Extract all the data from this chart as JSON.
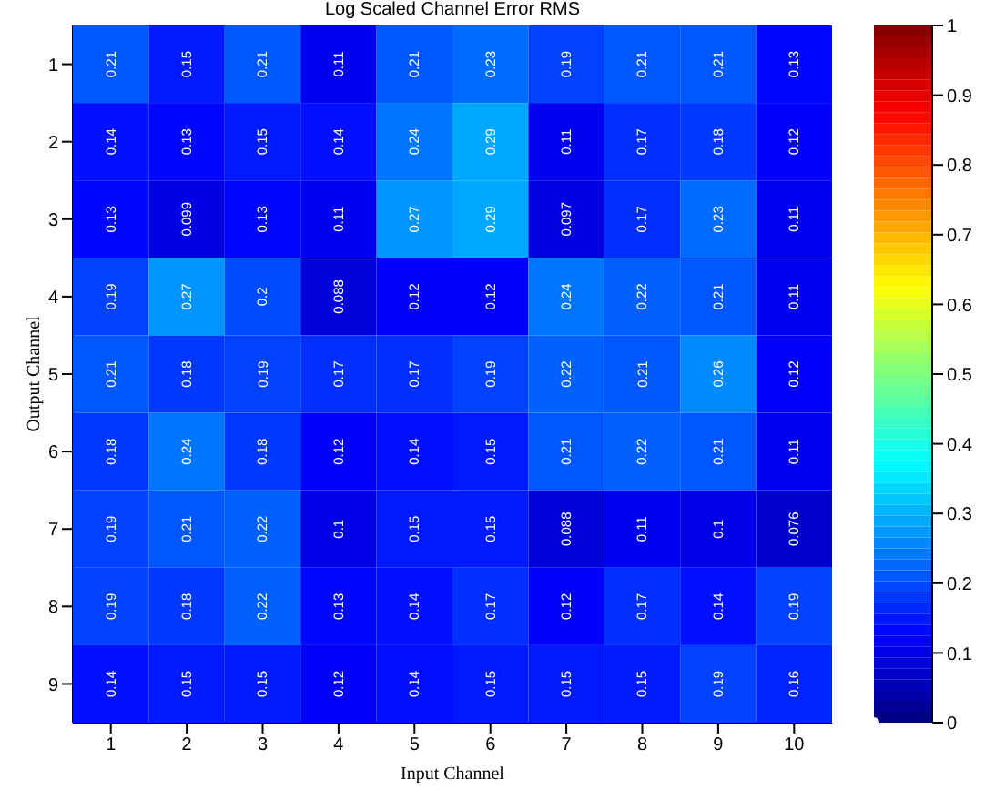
{
  "chart_data": {
    "type": "heatmap",
    "title": "Log Scaled Channel Error RMS",
    "xlabel": "Input Channel",
    "ylabel": "Output Channel",
    "categories": [
      "1",
      "2",
      "3",
      "4",
      "5",
      "6",
      "7",
      "8",
      "9",
      "10"
    ],
    "y_categories": [
      "1",
      "2",
      "3",
      "4",
      "5",
      "6",
      "7",
      "8",
      "9"
    ],
    "cells": [
      [
        0.21,
        0.15,
        0.21,
        0.11,
        0.21,
        0.23,
        0.19,
        0.21,
        0.21,
        0.13
      ],
      [
        0.14,
        0.13,
        0.15,
        0.14,
        0.24,
        0.29,
        0.11,
        0.17,
        0.18,
        0.12
      ],
      [
        0.13,
        0.099,
        0.13,
        0.11,
        0.27,
        0.29,
        0.097,
        0.17,
        0.23,
        0.11
      ],
      [
        0.19,
        0.27,
        0.2,
        0.088,
        0.12,
        0.12,
        0.24,
        0.22,
        0.21,
        0.11
      ],
      [
        0.21,
        0.18,
        0.19,
        0.17,
        0.17,
        0.19,
        0.22,
        0.21,
        0.26,
        0.12
      ],
      [
        0.18,
        0.24,
        0.18,
        0.12,
        0.14,
        0.15,
        0.21,
        0.22,
        0.21,
        0.11
      ],
      [
        0.19,
        0.21,
        0.22,
        0.1,
        0.15,
        0.15,
        0.088,
        0.11,
        0.1,
        0.076
      ],
      [
        0.19,
        0.18,
        0.22,
        0.13,
        0.14,
        0.17,
        0.12,
        0.17,
        0.14,
        0.19
      ],
      [
        0.14,
        0.15,
        0.15,
        0.12,
        0.14,
        0.15,
        0.15,
        0.15,
        0.19,
        0.16
      ]
    ],
    "data_labels": true,
    "clim": [
      0,
      1
    ],
    "cticks": [
      0,
      0.1,
      0.2,
      0.3,
      0.4,
      0.5,
      0.6,
      0.7,
      0.8,
      0.9,
      1
    ]
  }
}
